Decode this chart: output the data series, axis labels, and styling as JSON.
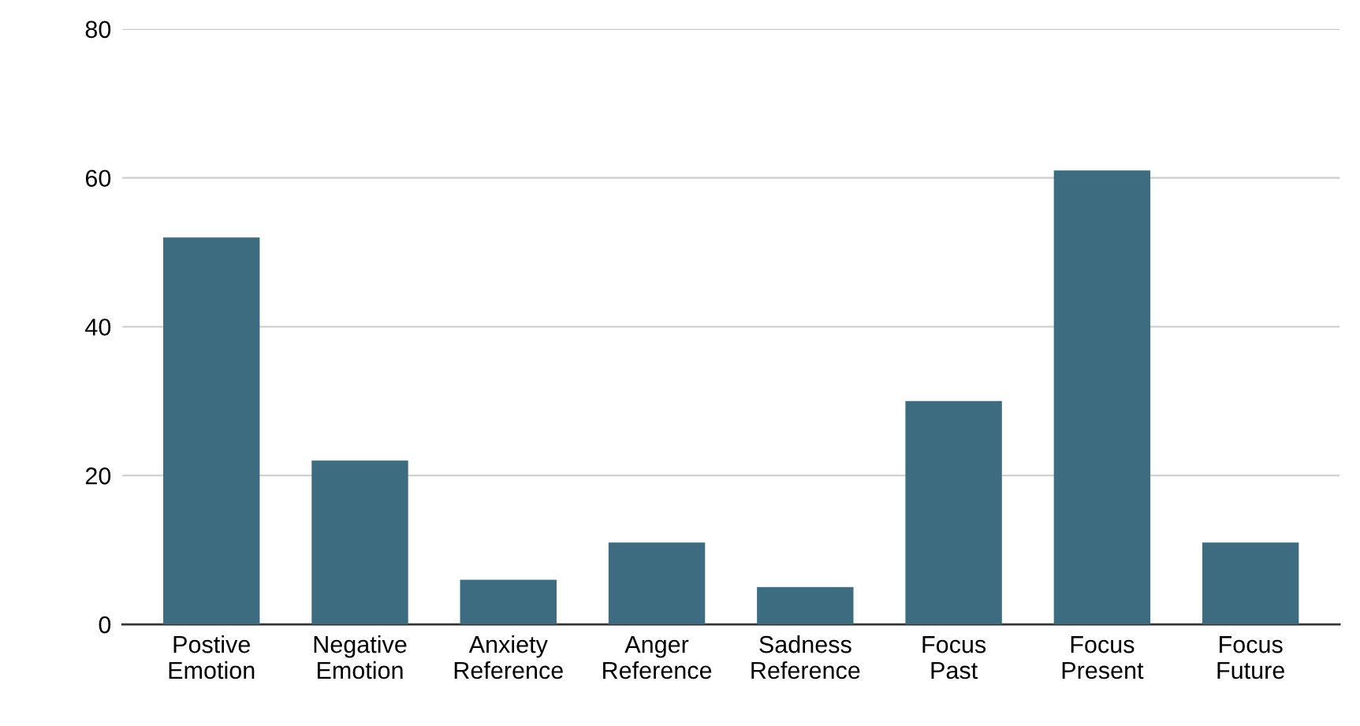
{
  "chart_data": {
    "type": "bar",
    "categories": [
      "Postive\nEmotion",
      "Negative\nEmotion",
      "Anxiety\nReference",
      "Anger\nReference",
      "Sadness\nReference",
      "Focus\nPast",
      "Focus\nPresent",
      "Focus\nFuture"
    ],
    "values": [
      52,
      22,
      6,
      11,
      5,
      30,
      61,
      11
    ],
    "color": "#3d6b80",
    "ylim": [
      0,
      80
    ],
    "yticks": [
      0,
      20,
      40,
      60,
      80
    ],
    "grid": "y",
    "legend": false
  }
}
